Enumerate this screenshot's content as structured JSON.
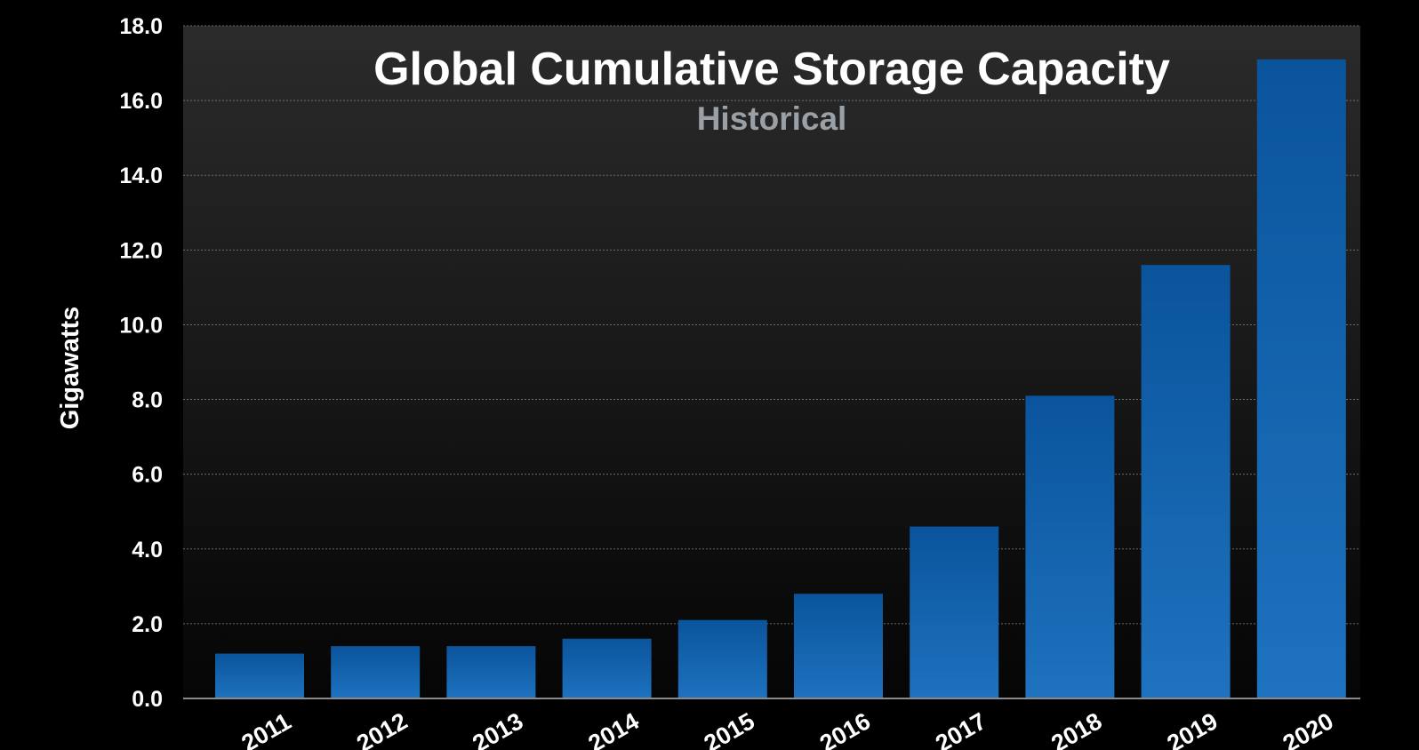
{
  "chart_data": {
    "type": "bar",
    "title": "Global Cumulative Storage Capacity",
    "subtitle": "Historical",
    "ylabel": "Gigawatts",
    "xlabel": "",
    "ylim": [
      0,
      18
    ],
    "yticks": [
      "0.0",
      "2.0",
      "4.0",
      "6.0",
      "8.0",
      "10.0",
      "12.0",
      "14.0",
      "16.0",
      "18.0"
    ],
    "grid": true,
    "categories": [
      "2011",
      "2012",
      "2013",
      "2014",
      "2015",
      "2016",
      "2017",
      "2018",
      "2019",
      "2020"
    ],
    "values": [
      1.2,
      1.4,
      1.4,
      1.6,
      2.1,
      2.8,
      4.6,
      8.1,
      11.6,
      17.1
    ],
    "colors": {
      "bar_top": "#0a549c",
      "bar_bottom": "#1e72bf",
      "plot_bg_top": "#2b2b2b",
      "plot_bg_bottom": "#050505",
      "grid": "#6b6b6b",
      "text": "#ffffff",
      "subtitle": "#9aa1a6"
    }
  }
}
